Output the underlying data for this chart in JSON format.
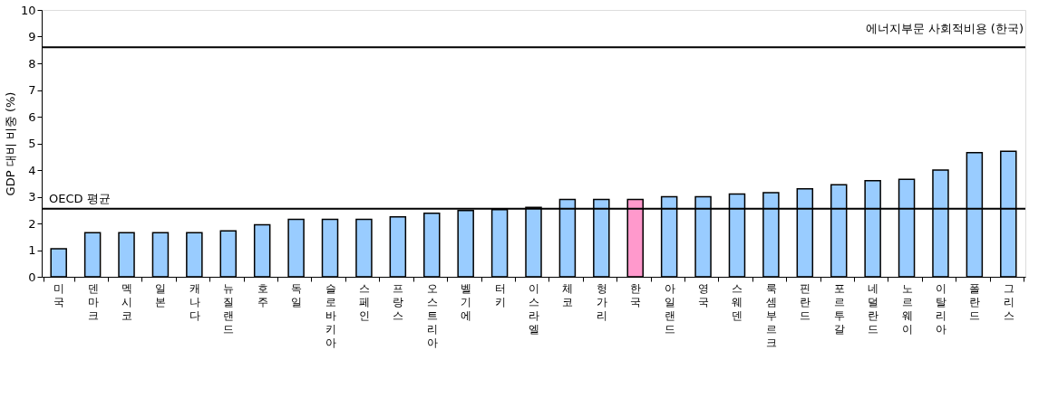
{
  "chart_data": {
    "type": "bar",
    "ylabel": "GDP 대비 비중 (%)",
    "categories": [
      "미국",
      "덴마크",
      "멕시코",
      "일본",
      "캐나다",
      "뉴질랜드",
      "호주",
      "독일",
      "슬로바키아",
      "스페인",
      "프랑스",
      "오스트리아",
      "벨기에",
      "터키",
      "이스라엘",
      "체코",
      "헝가리",
      "한국",
      "아일랜드",
      "영국",
      "스웨덴",
      "룩셈부르크",
      "핀란드",
      "포르투갈",
      "네덜란드",
      "노르웨이",
      "이탈리아",
      "폴란드",
      "그리스"
    ],
    "values": [
      1.05,
      1.65,
      1.65,
      1.65,
      1.65,
      1.72,
      1.95,
      2.15,
      2.15,
      2.15,
      2.25,
      2.38,
      2.48,
      2.52,
      2.6,
      2.9,
      2.9,
      2.9,
      3.0,
      3.0,
      3.1,
      3.15,
      3.3,
      3.45,
      3.6,
      3.65,
      4.0,
      4.65,
      4.7
    ],
    "colors": [
      "#99ccff",
      "#99ccff",
      "#99ccff",
      "#99ccff",
      "#99ccff",
      "#99ccff",
      "#99ccff",
      "#99ccff",
      "#99ccff",
      "#99ccff",
      "#99ccff",
      "#99ccff",
      "#99ccff",
      "#99ccff",
      "#99ccff",
      "#99ccff",
      "#99ccff",
      "#ff99cc",
      "#99ccff",
      "#99ccff",
      "#99ccff",
      "#99ccff",
      "#99ccff",
      "#99ccff",
      "#99ccff",
      "#99ccff",
      "#99ccff",
      "#99ccff",
      "#99ccff"
    ],
    "ylim": [
      0,
      10
    ],
    "yticks": [
      0,
      1,
      2,
      3,
      4,
      5,
      6,
      7,
      8,
      9,
      10
    ],
    "grid": false,
    "ref_lines": [
      {
        "axis": "y",
        "value": 8.6,
        "label": "에너지부문 사회적비용 (한국)",
        "color": "#000000"
      },
      {
        "axis": "y",
        "value": 2.55,
        "label": "OECD 평균",
        "color": "#000000"
      }
    ]
  }
}
